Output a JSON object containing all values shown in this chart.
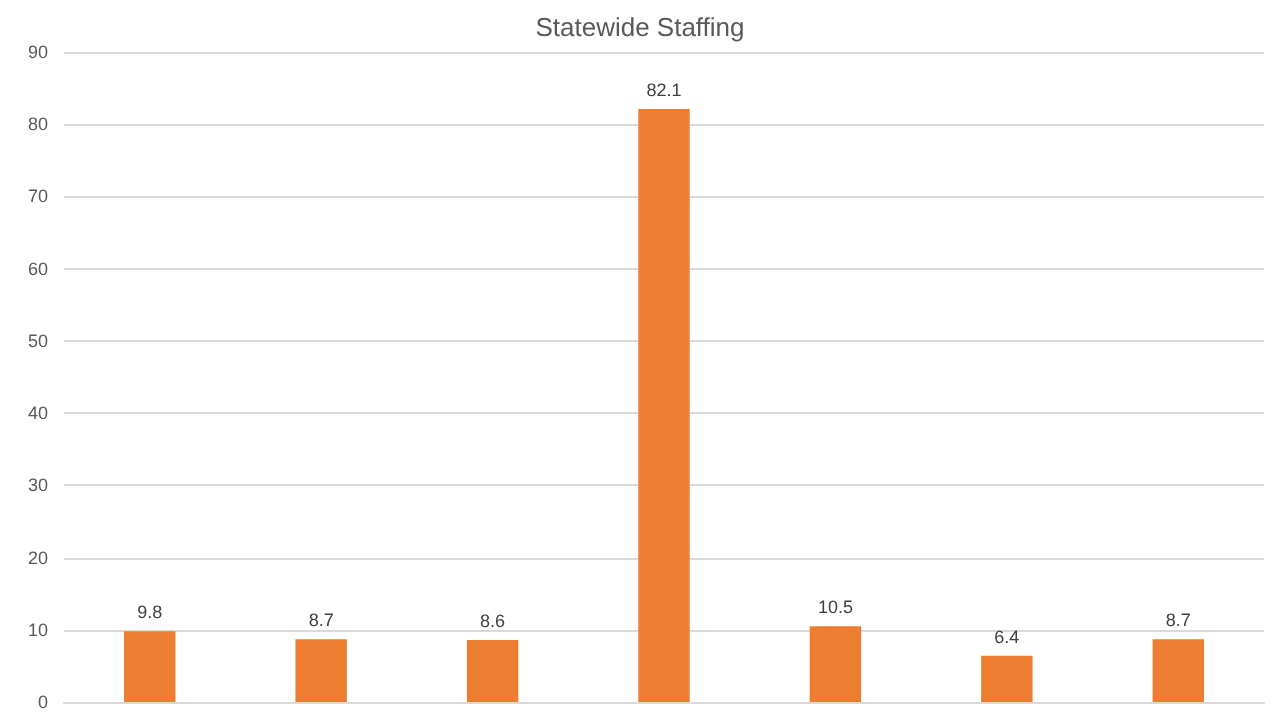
{
  "chart_data": {
    "type": "bar",
    "title": "Statewide Staffing",
    "categories": [
      null,
      null,
      null,
      null,
      null,
      null,
      null
    ],
    "values": [
      9.8,
      8.7,
      8.6,
      82.1,
      10.5,
      6.4,
      8.7
    ],
    "color": "#ed7d31",
    "ylim": [
      0,
      90
    ],
    "yticks": [
      0,
      10,
      20,
      30,
      40,
      50,
      60,
      70,
      80,
      90
    ],
    "grid": "y",
    "data_labels": true
  }
}
